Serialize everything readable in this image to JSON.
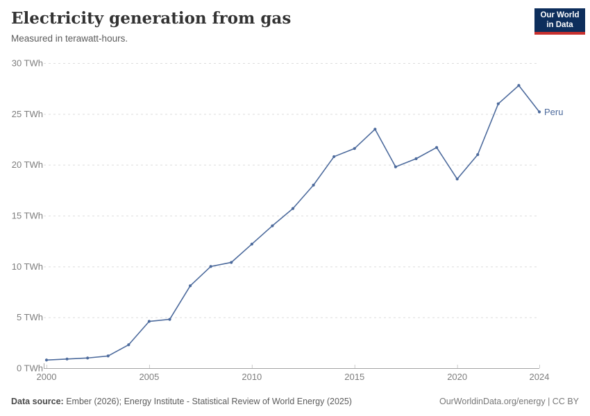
{
  "header": {
    "title": "Electricity generation from gas",
    "subtitle": "Measured in terawatt-hours."
  },
  "logo": {
    "line1": "Our World",
    "line2": "in Data",
    "bg_color": "#0d2e5c",
    "accent_color": "#c7302e"
  },
  "footer": {
    "source_label": "Data source:",
    "source_text": " Ember (2026); Energy Institute - Statistical Review of World Energy (2025)",
    "credit_link": "OurWorldinData.org/energy",
    "credit_separator": " | ",
    "credit_license": "CC BY"
  },
  "chart_data": {
    "type": "line",
    "title": "Electricity generation from gas",
    "subtitle": "Measured in terawatt-hours.",
    "unit": "TWh",
    "x": [
      2000,
      2001,
      2002,
      2003,
      2004,
      2005,
      2006,
      2007,
      2008,
      2009,
      2010,
      2011,
      2012,
      2013,
      2014,
      2015,
      2016,
      2017,
      2018,
      2019,
      2020,
      2021,
      2022,
      2023,
      2024
    ],
    "series": [
      {
        "name": "Peru",
        "color": "#4c6a9c",
        "values": [
          0.8,
          0.9,
          1.0,
          1.2,
          2.3,
          4.6,
          4.8,
          8.1,
          10.0,
          10.4,
          12.2,
          14.0,
          15.7,
          18.0,
          20.8,
          21.6,
          23.5,
          19.8,
          20.6,
          21.7,
          18.6,
          21.0,
          26.0,
          27.8,
          25.2
        ]
      }
    ],
    "xlim": [
      2000,
      2024
    ],
    "ylim": [
      0,
      30
    ],
    "yticks": [
      0,
      5,
      10,
      15,
      20,
      25,
      30
    ],
    "xticks": [
      2000,
      2005,
      2010,
      2015,
      2020,
      2024
    ],
    "grid": "horizontal-dashed",
    "legend_position": "end-of-line-label"
  }
}
